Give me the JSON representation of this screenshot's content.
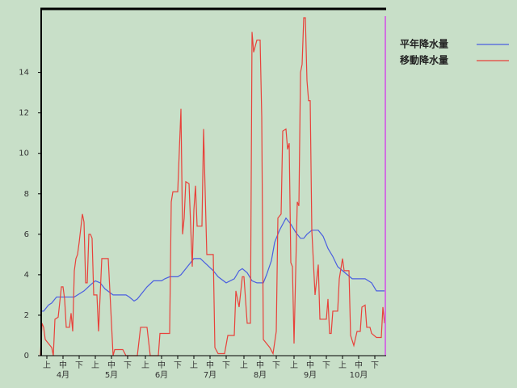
{
  "chart_data": {
    "type": "line",
    "xlim": [
      0,
      214
    ],
    "ylim": [
      0,
      17.1
    ],
    "yticks": [
      0,
      2,
      4,
      6,
      8,
      10,
      12,
      14
    ],
    "xticks": [
      {
        "value": 4,
        "label": "上"
      },
      {
        "value": 14,
        "label": "中"
      },
      {
        "value": 24,
        "label": "下"
      },
      {
        "value": 34,
        "label": "上"
      },
      {
        "value": 44,
        "label": "中"
      },
      {
        "value": 54,
        "label": "下"
      },
      {
        "value": 65,
        "label": "上"
      },
      {
        "value": 75,
        "label": "中"
      },
      {
        "value": 85,
        "label": "下"
      },
      {
        "value": 95,
        "label": "上"
      },
      {
        "value": 105,
        "label": "中"
      },
      {
        "value": 115,
        "label": "下"
      },
      {
        "value": 126,
        "label": "上"
      },
      {
        "value": 136,
        "label": "中"
      },
      {
        "value": 146,
        "label": "下"
      },
      {
        "value": 157,
        "label": "上"
      },
      {
        "value": 167,
        "label": "中"
      },
      {
        "value": 177,
        "label": "下"
      },
      {
        "value": 187,
        "label": "上"
      },
      {
        "value": 197,
        "label": "中"
      },
      {
        "value": 207,
        "label": "下"
      }
    ],
    "month_ticks": [
      {
        "value": 14,
        "label": "4月"
      },
      {
        "value": 44,
        "label": "5月"
      },
      {
        "value": 75,
        "label": "6月"
      },
      {
        "value": 105,
        "label": "7月"
      },
      {
        "value": 136,
        "label": "8月"
      },
      {
        "value": 167,
        "label": "9月"
      },
      {
        "value": 197,
        "label": "10月"
      }
    ],
    "grid": false,
    "series": [
      {
        "name": "平年降水量",
        "color": "#4a5ee0",
        "x": [
          0,
          2,
          5,
          7,
          10,
          21,
          23,
          27,
          31,
          34,
          37,
          40,
          45,
          53,
          55,
          58,
          60,
          63,
          66,
          70,
          75,
          77,
          80,
          85,
          87,
          91,
          95,
          99,
          103,
          107,
          110,
          115,
          120,
          123,
          125,
          128,
          131,
          134,
          138,
          140,
          143,
          145,
          148,
          152,
          155,
          158,
          161,
          163,
          165,
          168,
          172,
          175,
          178,
          181,
          184,
          187,
          190,
          193,
          201,
          205,
          208,
          214
        ],
        "values": [
          2.2,
          2.2,
          2.5,
          2.6,
          2.9,
          2.9,
          3.0,
          3.2,
          3.5,
          3.7,
          3.6,
          3.3,
          3.0,
          3.0,
          2.9,
          2.7,
          2.8,
          3.1,
          3.4,
          3.7,
          3.7,
          3.8,
          3.9,
          3.9,
          4.0,
          4.4,
          4.8,
          4.8,
          4.5,
          4.2,
          3.9,
          3.6,
          3.8,
          4.2,
          4.3,
          4.1,
          3.7,
          3.6,
          3.6,
          4.0,
          4.7,
          5.6,
          6.2,
          6.8,
          6.5,
          6.1,
          5.8,
          5.8,
          6.0,
          6.2,
          6.2,
          5.9,
          5.3,
          4.9,
          4.4,
          4.2,
          4.0,
          3.8,
          3.8,
          3.6,
          3.2,
          3.2
        ]
      },
      {
        "name": "移動降水量",
        "color": "#e8413a",
        "x": [
          0,
          1,
          2,
          3,
          5,
          7,
          8,
          9,
          11,
          13,
          14,
          15,
          16,
          18,
          19,
          20,
          21,
          22,
          23,
          24,
          26,
          27,
          28,
          29,
          30,
          31,
          32,
          33,
          35,
          36,
          38,
          42,
          43,
          45,
          46,
          51,
          53,
          60,
          62,
          66,
          68,
          73,
          74,
          80,
          81,
          82,
          85,
          87,
          88,
          89,
          90,
          92,
          94,
          95,
          96,
          97,
          100,
          101,
          103,
          107,
          108,
          110,
          114,
          116,
          120,
          121,
          123,
          125,
          126,
          128,
          130,
          131,
          132,
          134,
          136,
          137,
          138,
          140,
          142,
          144,
          146,
          147,
          149,
          150,
          152,
          153,
          154,
          155,
          156,
          157,
          159,
          160,
          161,
          162,
          163,
          164,
          165,
          166,
          167,
          168,
          170,
          172,
          173,
          177,
          178,
          179,
          180,
          181,
          184,
          185,
          187,
          188,
          191,
          192,
          194,
          196,
          198,
          199,
          201,
          202,
          204,
          205,
          208,
          211,
          212,
          213
        ],
        "values": [
          0,
          1.6,
          1.4,
          0.8,
          0.6,
          0.4,
          0,
          1.8,
          1.9,
          3.4,
          3.4,
          2.8,
          1.4,
          1.4,
          2.1,
          1.2,
          4.2,
          4.8,
          5.0,
          5.6,
          7.0,
          6.6,
          3.6,
          3.6,
          6.0,
          6.0,
          5.8,
          3.0,
          3.0,
          1.2,
          4.8,
          4.8,
          3.2,
          0,
          0.3,
          0.3,
          0,
          0,
          1.4,
          1.4,
          0,
          0,
          1.1,
          1.1,
          7.6,
          8.1,
          8.1,
          12.2,
          6.0,
          6.8,
          8.6,
          8.5,
          4.4,
          7.2,
          8.4,
          6.4,
          6.4,
          11.2,
          5.0,
          5.0,
          0.4,
          0.1,
          0.1,
          1.0,
          1.0,
          3.2,
          2.4,
          3.9,
          3.9,
          1.6,
          1.6,
          16.0,
          15.0,
          15.6,
          15.6,
          11.8,
          0.8,
          0.6,
          0.4,
          0.1,
          1.2,
          6.8,
          7.0,
          11.1,
          11.2,
          10.2,
          10.5,
          4.6,
          4.4,
          0.6,
          7.6,
          7.4,
          14.0,
          14.4,
          16.7,
          16.7,
          13.6,
          12.6,
          12.6,
          6.2,
          3.0,
          4.5,
          1.8,
          1.8,
          2.8,
          1.1,
          1.1,
          2.2,
          2.2,
          3.8,
          4.8,
          4.2,
          4.2,
          1.0,
          0.5,
          1.2,
          1.2,
          2.4,
          2.5,
          1.4,
          1.4,
          1.1,
          0.9,
          0.9,
          2.4,
          1.6
        ]
      }
    ]
  }
}
